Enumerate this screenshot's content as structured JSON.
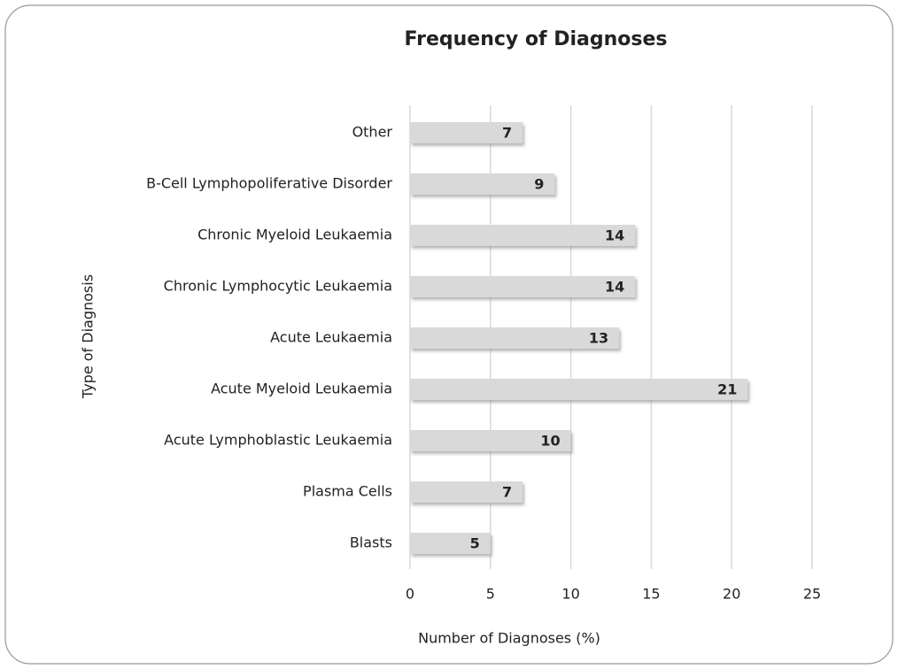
{
  "chart_data": {
    "type": "bar",
    "orientation": "horizontal",
    "title": "Frequency of Diagnoses",
    "x_label": "Number of Diagnoses (%)",
    "y_label": "Type of Diagnosis",
    "categories": [
      "Other",
      "B-Cell Lymphopoliferative Disorder",
      "Chronic Myeloid Leukaemia",
      "Chronic Lymphocytic Leukaemia",
      "Acute Leukaemia",
      "Acute Myeloid Leukaemia",
      "Acute Lymphoblastic Leukaemia",
      "Plasma Cells",
      "Blasts"
    ],
    "values": [
      7,
      9,
      14,
      14,
      13,
      21,
      10,
      7,
      5
    ],
    "color": "#d9d9d9",
    "xlim": [
      0,
      25
    ],
    "xticks": [
      0,
      5,
      10,
      15,
      20,
      25
    ],
    "grid": true
  }
}
